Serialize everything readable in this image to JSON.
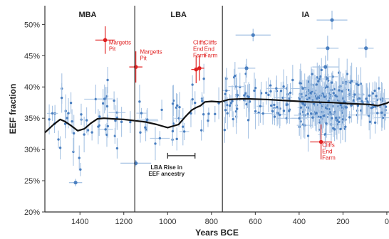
{
  "chart_data": {
    "type": "scatter",
    "xlabel": "Years BCE",
    "ylabel": "EEF fraction",
    "x_axis_reversed": true,
    "xlim": [
      1560,
      -10
    ],
    "ylim": [
      20,
      53
    ],
    "x_ticks": [
      {
        "value": 1400,
        "label": "1400"
      },
      {
        "value": 1200,
        "label": "1200"
      },
      {
        "value": 1000,
        "label": "1000"
      },
      {
        "value": 800,
        "label": "800"
      },
      {
        "value": 600,
        "label": "600"
      },
      {
        "value": 400,
        "label": "400"
      },
      {
        "value": 200,
        "label": "200"
      },
      {
        "value": 0,
        "label": "0"
      }
    ],
    "y_ticks": [
      {
        "value": 20,
        "label": "20%"
      },
      {
        "value": 25,
        "label": "25%"
      },
      {
        "value": 30,
        "label": "30%"
      },
      {
        "value": 35,
        "label": "35%"
      },
      {
        "value": 40,
        "label": "40%"
      },
      {
        "value": 45,
        "label": "45%"
      },
      {
        "value": 50,
        "label": "50%"
      }
    ],
    "grid": false,
    "period_boundaries": [
      1150,
      750
    ],
    "periods": [
      {
        "label": "MBA",
        "center": 1365
      },
      {
        "label": "LBA",
        "center": 950
      },
      {
        "label": "IA",
        "center": 370
      }
    ],
    "colors": {
      "samples": "#4a7fc0",
      "samples_errorbar": "#a8c4e4",
      "highlight": "#e02020",
      "trend": "#111111"
    },
    "highlighted_points": [
      {
        "x": 1285,
        "y": 47.5,
        "x_err": 45,
        "y_err": 2.2
      },
      {
        "x": 1145,
        "y": 43.2,
        "x_err": 30,
        "y_err": 2.5
      },
      {
        "x": 870,
        "y": 42.8,
        "x_err": 22,
        "y_err": 2.2
      },
      {
        "x": 855,
        "y": 43.0,
        "x_err": 22,
        "y_err": 2.0
      },
      {
        "x": 300,
        "y": 31.2,
        "x_err": 50,
        "y_err": 2.8
      }
    ],
    "outlier_points": [
      {
        "x": 1420,
        "y": 24.7,
        "x_err": 30,
        "y_err": 0.6
      },
      {
        "x": 1145,
        "y": 27.8,
        "x_err": 70,
        "y_err": 0.5
      },
      {
        "x": 610,
        "y": 48.3,
        "x_err": 80,
        "y_err": 1.0
      },
      {
        "x": 250,
        "y": 50.7,
        "x_err": 70,
        "y_err": 1.5
      },
      {
        "x": 270,
        "y": 46.2,
        "x_err": 50,
        "y_err": 2.0
      },
      {
        "x": 95,
        "y": 46.2,
        "x_err": 35,
        "y_err": 1.5
      },
      {
        "x": 640,
        "y": 43.0,
        "x_err": 40,
        "y_err": 1.5
      },
      {
        "x": 280,
        "y": 43.2,
        "x_err": 60,
        "y_err": 1.8
      }
    ],
    "trend_line": {
      "x": [
        1560,
        1520,
        1490,
        1470,
        1440,
        1410,
        1380,
        1350,
        1320,
        1290,
        1250,
        1200,
        1150,
        1100,
        1050,
        1000,
        950,
        920,
        890,
        870,
        850,
        830,
        800,
        760,
        720,
        650,
        550,
        450,
        350,
        250,
        150,
        80,
        40,
        0,
        -10
      ],
      "y": [
        32.7,
        34.0,
        34.8,
        34.5,
        33.8,
        33.0,
        33.3,
        34.2,
        34.9,
        35.0,
        34.9,
        34.8,
        34.6,
        34.4,
        34.0,
        33.5,
        34.0,
        35.2,
        36.3,
        36.7,
        37.0,
        37.6,
        37.7,
        37.6,
        38.0,
        38.1,
        38.0,
        37.8,
        37.6,
        37.5,
        37.3,
        37.2,
        37.0,
        37.4,
        37.6
      ]
    },
    "annotations": [
      {
        "lines": [
          "Margetts",
          "Pit"
        ],
        "x": 1268,
        "y": 46.8,
        "color": "red"
      },
      {
        "lines": [
          "Margetts",
          "Pit"
        ],
        "x": 1126,
        "y": 45.3,
        "color": "red"
      },
      {
        "lines": [
          "Cliffs",
          "End",
          "Farm"
        ],
        "x": 884,
        "y": 46.8,
        "color": "red"
      },
      {
        "lines": [
          "Cliffs",
          "End",
          "Farm"
        ],
        "x": 833,
        "y": 46.8,
        "color": "red"
      },
      {
        "lines": [
          "Cliffs",
          "End",
          "Farm"
        ],
        "x": 295,
        "y": 30.4,
        "color": "red"
      },
      {
        "lines": [
          "LBA Rise in",
          "EEF ancestry"
        ],
        "x": 1005,
        "y": 26.8,
        "color": "black"
      }
    ],
    "lba_rise_bracket": {
      "x_start": 1000,
      "x_end": 875,
      "y": 29.0
    }
  }
}
